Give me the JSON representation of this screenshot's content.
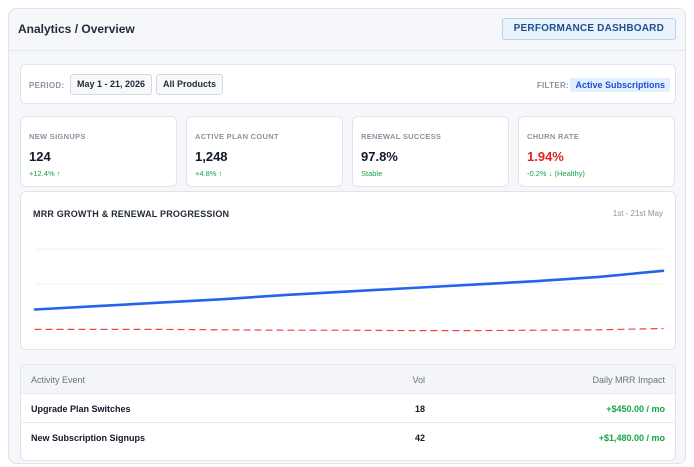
{
  "header": {
    "breadcrumb": "Analytics / Overview",
    "dashboard_button": "PERFORMANCE DASHBOARD"
  },
  "filters": {
    "period_label": "PERIOD:",
    "period_value": "May 1 - 21, 2026",
    "product_value": "All Products",
    "filter_label": "FILTER:",
    "filter_value": "Active Subscriptions"
  },
  "kpis": [
    {
      "label": "NEW SIGNUPS",
      "value": "124",
      "delta": "+12.4% ↑"
    },
    {
      "label": "ACTIVE PLAN COUNT",
      "value": "1,248",
      "delta": "+4.8% ↑"
    },
    {
      "label": "RENEWAL SUCCESS",
      "value": "97.8%",
      "delta": "Stable"
    },
    {
      "label": "CHURN RATE",
      "value": "1.94%",
      "delta": "-0.2% ↓ (Healthy)"
    }
  ],
  "colors": {
    "accent": "#2563eb",
    "positive": "#16a34a",
    "negative": "#dc2626",
    "churn_line": "#ef4444"
  },
  "chart": {
    "title": "MRR GROWTH & RENEWAL PROGRESSION",
    "range": "1st - 21st May"
  },
  "chart_data": {
    "type": "line",
    "title": "MRR GROWTH & RENEWAL PROGRESSION",
    "xlabel": "",
    "ylabel": "",
    "x": [
      1,
      3,
      5,
      7,
      9,
      11,
      13,
      15,
      17,
      19,
      21
    ],
    "ylim": [
      0,
      100
    ],
    "grid": true,
    "series": [
      {
        "values": [
          10,
          14,
          18,
          22,
          27,
          31,
          35,
          39,
          43,
          48,
          55
        ],
        "color": "#2563eb",
        "style": "solid"
      },
      {
        "values": [
          -13,
          -13,
          -13,
          -13.5,
          -14,
          -14,
          -14.5,
          -14.5,
          -14,
          -13.5,
          -12
        ],
        "color": "#ef4444",
        "style": "dashed"
      }
    ]
  },
  "table": {
    "headers": {
      "event": "Activity Event",
      "vol": "Vol",
      "impact": "Daily MRR Impact"
    },
    "rows": [
      {
        "event": "Upgrade Plan Switches",
        "vol": "18",
        "impact": "+$450.00 / mo"
      },
      {
        "event": "New Subscription Signups",
        "vol": "42",
        "impact": "+$1,480.00 / mo"
      }
    ]
  }
}
